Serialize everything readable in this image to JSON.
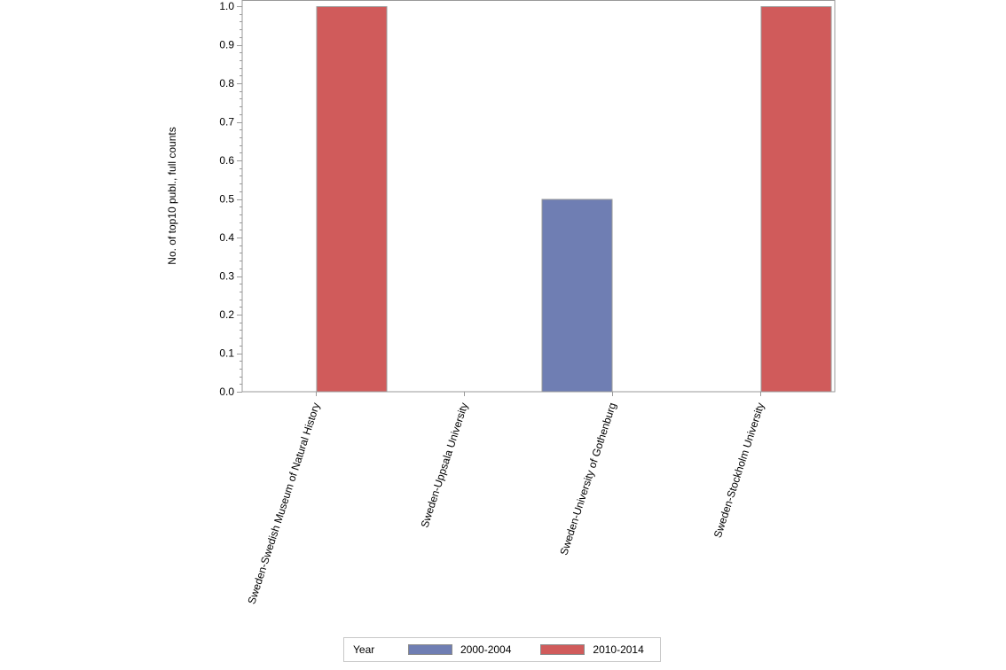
{
  "chart_data": {
    "type": "bar",
    "title": "",
    "xlabel": "",
    "ylabel": "No. of top10 publ., full counts",
    "ylim": [
      0,
      1.0
    ],
    "yticks": [
      "0.0",
      "0.1",
      "0.2",
      "0.3",
      "0.4",
      "0.5",
      "0.6",
      "0.7",
      "0.8",
      "0.9",
      "1.0"
    ],
    "categories": [
      "Sweden-Swedish Museum of Natural History",
      "Sweden-Uppsala University",
      "Sweden-University of Gothenburg",
      "Sweden-Stockholm University"
    ],
    "series": [
      {
        "name": "2000-2004",
        "color": "#6f7eb3",
        "values": [
          0,
          0,
          0.5,
          0
        ]
      },
      {
        "name": "2010-2014",
        "color": "#d05b5b",
        "values": [
          1.0,
          0,
          0,
          1.0
        ]
      }
    ],
    "grid": false,
    "legend_position": "bottom"
  },
  "legend": {
    "title": "Year",
    "entries": [
      {
        "label": "2000-2004",
        "color": "#6f7eb3"
      },
      {
        "label": "2010-2014",
        "color": "#d05b5b"
      }
    ]
  }
}
